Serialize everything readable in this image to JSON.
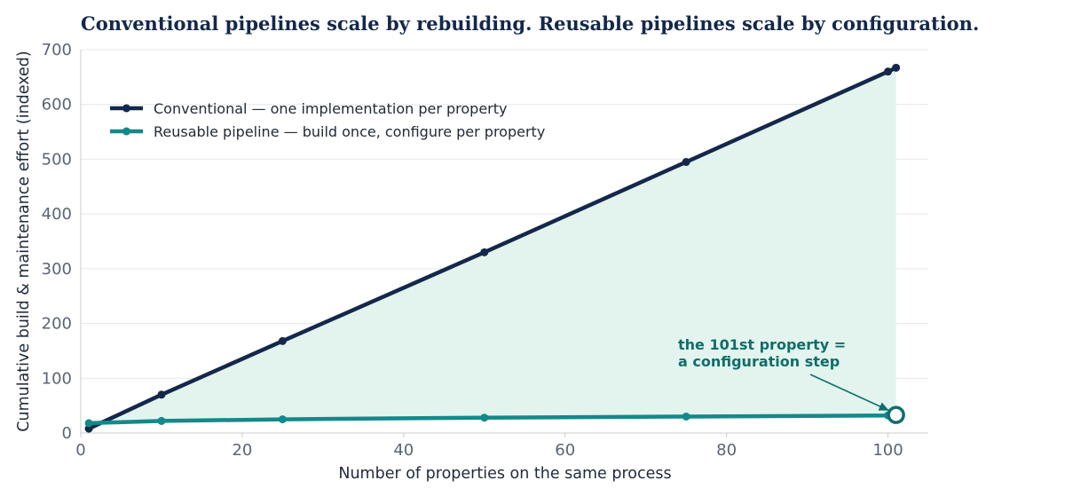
{
  "chart_data": {
    "type": "line",
    "title": "Conventional pipelines scale by rebuilding. Reusable pipelines scale by configuration.",
    "xlabel": "Number of properties on the same process",
    "ylabel": "Cumulative build & maintenance effort (indexed)",
    "xlim": [
      0,
      105
    ],
    "ylim": [
      0,
      700
    ],
    "xticks": [
      0,
      20,
      40,
      60,
      80,
      100
    ],
    "yticks": [
      0,
      100,
      200,
      300,
      400,
      500,
      600,
      700
    ],
    "grid": "horizontal",
    "legend_position": "top-left",
    "shaded_between_series": true,
    "series": [
      {
        "name": "Conventional — one implementation per property",
        "color": "#13284a",
        "x": [
          1,
          10,
          25,
          50,
          75,
          100,
          101
        ],
        "y": [
          8,
          70,
          168,
          330,
          495,
          660,
          667
        ]
      },
      {
        "name": "Reusable pipeline — build once, configure per property",
        "color": "#13898a",
        "x": [
          1,
          10,
          25,
          50,
          75,
          100,
          101
        ],
        "y": [
          18,
          22,
          25,
          28,
          30,
          32,
          33
        ]
      }
    ],
    "annotation": {
      "lines": [
        "the 101st property =",
        "a configuration step"
      ],
      "x": 101,
      "y": 33,
      "color": "#0f6e6a"
    },
    "fill_color": "#e3f4ee"
  }
}
